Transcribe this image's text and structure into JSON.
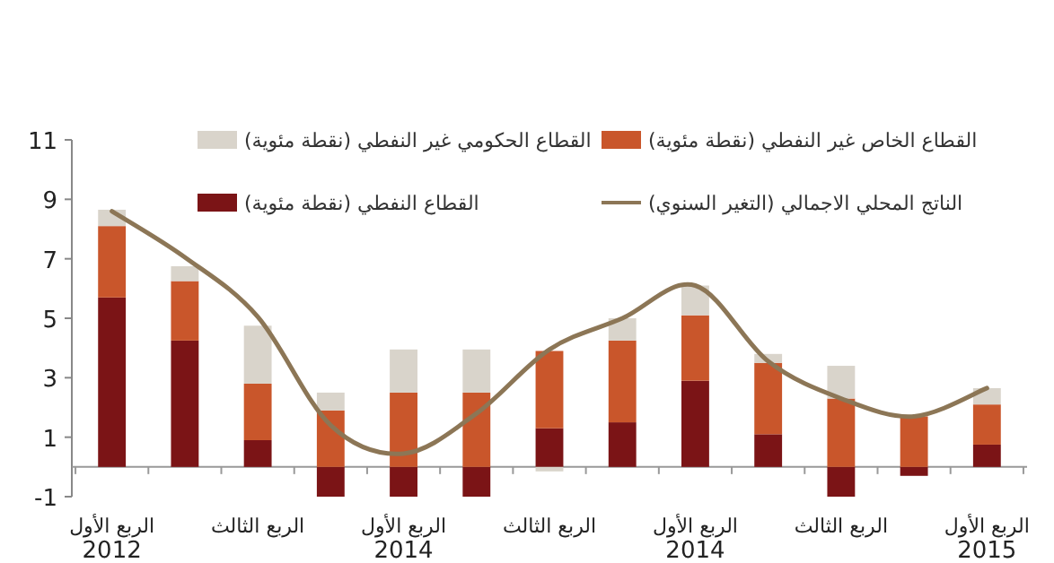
{
  "chart_data": {
    "type": "bar",
    "stacked": true,
    "legend": "top",
    "categories": [
      "الربع الأول\n2012",
      null,
      "الربع الثالث",
      null,
      "الربع الأول\n2014",
      null,
      "الربع الثالث",
      null,
      "الربع الأول\n2014",
      null,
      "الربع الثالث",
      null,
      "الربع الأول\n2015"
    ],
    "ylim": [
      -1,
      11
    ],
    "yticks": [
      -1,
      1,
      3,
      5,
      7,
      9,
      11
    ],
    "series": [
      {
        "name": "القطاع النفطي (نقطة مئوية)",
        "color": "#7b1416",
        "values": [
          5.7,
          4.25,
          0.9,
          -1.0,
          -1.0,
          -1.0,
          1.3,
          1.5,
          2.9,
          1.1,
          -1.0,
          -0.3,
          0.75
        ]
      },
      {
        "name": "القطاع الخاص غير النفطي (نقطة مئوية)",
        "color": "#c9562b",
        "values": [
          2.4,
          2.0,
          1.9,
          1.9,
          2.5,
          2.5,
          2.6,
          2.75,
          2.2,
          2.4,
          2.3,
          1.7,
          1.35
        ]
      },
      {
        "name": "القطاع الحكومي غير النفطي (نقطة مئوية)",
        "color": "#d9d4cb",
        "values": [
          0.55,
          0.5,
          1.95,
          0.6,
          1.45,
          1.45,
          -0.15,
          0.75,
          1.0,
          0.3,
          1.1,
          null,
          0.55
        ]
      },
      {
        "name": "الناتج المحلي الاجمالي (التغير السنوي)",
        "type": "line",
        "color": "#8c7656",
        "values": [
          8.6,
          7.05,
          5.05,
          1.4,
          0.45,
          1.8,
          3.95,
          5.0,
          6.1,
          3.55,
          2.3,
          1.7,
          2.65
        ]
      }
    ]
  }
}
